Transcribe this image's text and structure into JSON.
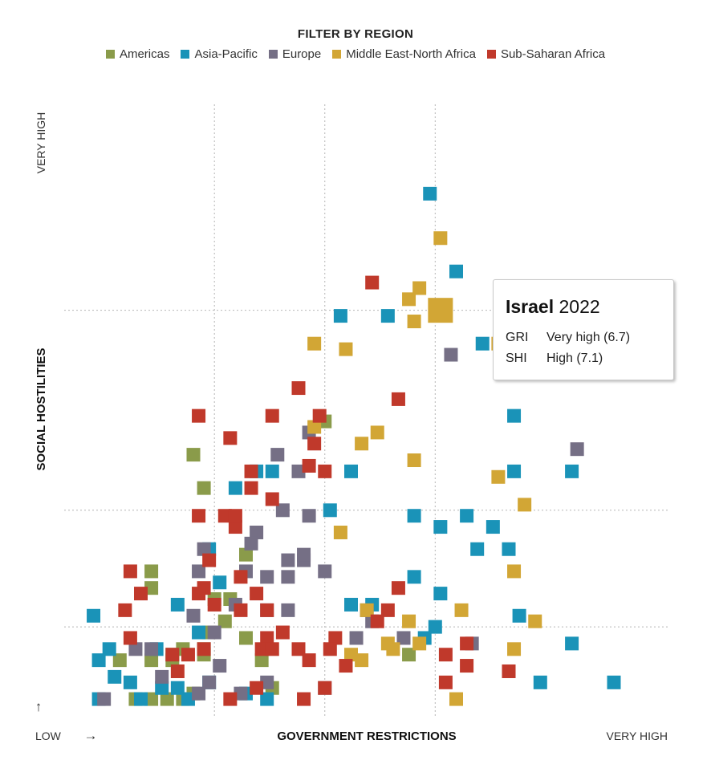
{
  "legend": {
    "title": "FILTER BY REGION",
    "items": [
      {
        "label": "Americas",
        "color": "#8a9b4a"
      },
      {
        "label": "Asia-Pacific",
        "color": "#1a93b8"
      },
      {
        "label": "Europe",
        "color": "#756f85"
      },
      {
        "label": "Middle East-North Africa",
        "color": "#d2a635"
      },
      {
        "label": "Sub-Saharan Africa",
        "color": "#c0392b"
      }
    ]
  },
  "tooltip": {
    "country": "Israel",
    "year": "2022",
    "rows": [
      {
        "key": "GRI",
        "value": "Very high (6.7)"
      },
      {
        "key": "SHI",
        "value": "High (7.1)"
      }
    ]
  },
  "chart_data": {
    "type": "scatter",
    "title": "",
    "xlabel": "GOVERNMENT RESTRICTIONS",
    "ylabel": "SOCIAL HOSTILITIES",
    "x_low_label": "LOW",
    "x_high_label": "VERY HIGH",
    "y_high_label": "VERY HIGH",
    "x_arrow": "→",
    "y_arrow": "↑",
    "xlim": [
      0,
      10
    ],
    "ylim": [
      0,
      10
    ],
    "x_thresholds": [
      2.4,
      4.5,
      6.6
    ],
    "y_thresholds": [
      1.4,
      3.5,
      7.1
    ],
    "grid": true,
    "legend_position": "top-center",
    "highlight": {
      "x": 6.7,
      "y": 7.1
    },
    "series": [
      {
        "name": "Americas",
        "points": [
          [
            0.9,
            0.1
          ],
          [
            1.2,
            0.1
          ],
          [
            1.5,
            0.1
          ],
          [
            1.8,
            0.1
          ],
          [
            2.0,
            0.2
          ],
          [
            0.6,
            0.8
          ],
          [
            1.2,
            0.8
          ],
          [
            1.6,
            0.8
          ],
          [
            1.8,
            1.0
          ],
          [
            2.2,
            1.0
          ],
          [
            2.3,
            1.3
          ],
          [
            2.6,
            1.5
          ],
          [
            3.0,
            1.2
          ],
          [
            3.3,
            0.8
          ],
          [
            3.5,
            0.3
          ],
          [
            1.2,
            2.1
          ],
          [
            1.2,
            2.4
          ],
          [
            2.4,
            1.9
          ],
          [
            2.7,
            1.9
          ],
          [
            2.0,
            4.5
          ],
          [
            2.2,
            3.9
          ],
          [
            3.0,
            2.7
          ],
          [
            4.5,
            5.1
          ],
          [
            1.6,
            0.9
          ],
          [
            6.1,
            0.9
          ],
          [
            2.2,
            0.9
          ]
        ]
      },
      {
        "name": "Asia-Pacific",
        "points": [
          [
            0.1,
            1.6
          ],
          [
            0.2,
            0.8
          ],
          [
            0.4,
            1.0
          ],
          [
            0.2,
            0.1
          ],
          [
            0.5,
            0.5
          ],
          [
            0.8,
            0.4
          ],
          [
            1.0,
            0.1
          ],
          [
            1.4,
            0.3
          ],
          [
            1.7,
            0.3
          ],
          [
            1.3,
            1.0
          ],
          [
            1.7,
            1.8
          ],
          [
            2.1,
            1.3
          ],
          [
            2.5,
            2.2
          ],
          [
            2.3,
            2.8
          ],
          [
            1.9,
            0.1
          ],
          [
            2.3,
            0.4
          ],
          [
            3.2,
            4.2
          ],
          [
            3.5,
            4.2
          ],
          [
            4.6,
            3.5
          ],
          [
            5.0,
            4.2
          ],
          [
            5.0,
            1.8
          ],
          [
            5.4,
            1.8
          ],
          [
            5.7,
            7.0
          ],
          [
            6.2,
            2.3
          ],
          [
            6.2,
            3.4
          ],
          [
            6.4,
            1.2
          ],
          [
            6.6,
            1.4
          ],
          [
            6.7,
            2.0
          ],
          [
            6.7,
            3.2
          ],
          [
            7.2,
            3.4
          ],
          [
            7.4,
            2.8
          ],
          [
            7.7,
            3.2
          ],
          [
            8.0,
            2.8
          ],
          [
            8.1,
            4.2
          ],
          [
            9.2,
            1.1
          ],
          [
            8.6,
            0.4
          ],
          [
            10.0,
            0.4
          ],
          [
            9.2,
            4.2
          ],
          [
            8.2,
            1.6
          ],
          [
            7.0,
            7.8
          ],
          [
            6.5,
            9.2
          ],
          [
            8.1,
            5.2
          ],
          [
            2.8,
            3.9
          ],
          [
            4.8,
            7.0
          ],
          [
            7.5,
            6.5
          ],
          [
            3.0,
            0.2
          ],
          [
            3.4,
            0.1
          ]
        ]
      },
      {
        "name": "Europe",
        "points": [
          [
            0.3,
            0.1
          ],
          [
            0.9,
            1.0
          ],
          [
            1.2,
            1.0
          ],
          [
            1.4,
            0.5
          ],
          [
            2.0,
            1.6
          ],
          [
            2.4,
            1.3
          ],
          [
            2.8,
            1.8
          ],
          [
            2.1,
            2.4
          ],
          [
            2.2,
            2.8
          ],
          [
            3.0,
            2.4
          ],
          [
            3.4,
            1.7
          ],
          [
            3.8,
            1.7
          ],
          [
            3.8,
            2.3
          ],
          [
            4.1,
            2.6
          ],
          [
            3.4,
            2.3
          ],
          [
            3.8,
            2.6
          ],
          [
            4.1,
            2.7
          ],
          [
            4.2,
            3.4
          ],
          [
            4.2,
            4.9
          ],
          [
            4.0,
            4.2
          ],
          [
            3.6,
            4.5
          ],
          [
            3.2,
            3.1
          ],
          [
            3.7,
            3.5
          ],
          [
            4.5,
            2.4
          ],
          [
            5.3,
            1.7
          ],
          [
            5.4,
            1.5
          ],
          [
            7.3,
            1.1
          ],
          [
            5.1,
            1.2
          ],
          [
            6.9,
            6.3
          ],
          [
            9.3,
            4.6
          ],
          [
            6.0,
            1.2
          ],
          [
            3.4,
            0.4
          ],
          [
            4.5,
            0.3
          ],
          [
            2.1,
            0.2
          ],
          [
            2.3,
            0.4
          ],
          [
            2.9,
            0.2
          ],
          [
            3.1,
            2.9
          ],
          [
            2.5,
            0.7
          ]
        ]
      },
      {
        "name": "Middle East-North Africa",
        "points": [
          [
            4.3,
            5.0
          ],
          [
            4.3,
            6.5
          ],
          [
            4.9,
            6.4
          ],
          [
            5.5,
            4.9
          ],
          [
            6.1,
            7.3
          ],
          [
            6.2,
            4.4
          ],
          [
            7.8,
            6.5
          ],
          [
            7.8,
            4.1
          ],
          [
            8.5,
            1.5
          ],
          [
            8.1,
            2.4
          ],
          [
            8.1,
            1.0
          ],
          [
            7.1,
            1.7
          ],
          [
            6.1,
            1.5
          ],
          [
            6.3,
            1.1
          ],
          [
            5.2,
            0.8
          ],
          [
            5.3,
            1.7
          ],
          [
            5.8,
            1.0
          ],
          [
            5.2,
            4.7
          ],
          [
            6.3,
            7.5
          ],
          [
            6.7,
            8.4
          ],
          [
            8.3,
            3.6
          ],
          [
            4.8,
            3.1
          ],
          [
            5.0,
            0.9
          ],
          [
            7.0,
            0.1
          ],
          [
            5.7,
            1.1
          ],
          [
            6.2,
            6.9
          ]
        ]
      },
      {
        "name": "Sub-Saharan Africa",
        "points": [
          [
            0.7,
            1.7
          ],
          [
            0.8,
            1.2
          ],
          [
            1.0,
            2.0
          ],
          [
            0.8,
            2.4
          ],
          [
            2.1,
            3.4
          ],
          [
            2.6,
            3.4
          ],
          [
            2.8,
            3.2
          ],
          [
            2.3,
            2.6
          ],
          [
            2.9,
            2.3
          ],
          [
            3.2,
            2.0
          ],
          [
            3.4,
            1.7
          ],
          [
            3.7,
            1.3
          ],
          [
            2.2,
            2.1
          ],
          [
            2.9,
            1.7
          ],
          [
            3.4,
            1.2
          ],
          [
            3.3,
            1.0
          ],
          [
            3.5,
            1.0
          ],
          [
            4.0,
            1.0
          ],
          [
            4.7,
            1.2
          ],
          [
            4.2,
            0.8
          ],
          [
            4.6,
            1.0
          ],
          [
            4.5,
            0.3
          ],
          [
            4.9,
            0.7
          ],
          [
            2.2,
            1.0
          ],
          [
            1.6,
            0.9
          ],
          [
            1.9,
            0.9
          ],
          [
            1.7,
            0.6
          ],
          [
            2.1,
            2.0
          ],
          [
            2.7,
            0.1
          ],
          [
            3.2,
            0.3
          ],
          [
            4.1,
            0.1
          ],
          [
            5.4,
            7.6
          ],
          [
            5.9,
            5.5
          ],
          [
            5.9,
            2.1
          ],
          [
            2.8,
            3.4
          ],
          [
            3.1,
            3.9
          ],
          [
            3.5,
            3.7
          ],
          [
            4.2,
            4.3
          ],
          [
            3.1,
            4.2
          ],
          [
            3.5,
            5.2
          ],
          [
            4.3,
            4.7
          ],
          [
            4.5,
            4.2
          ],
          [
            6.8,
            0.9
          ],
          [
            7.2,
            0.7
          ],
          [
            8.0,
            0.6
          ],
          [
            2.1,
            5.2
          ],
          [
            2.7,
            4.8
          ],
          [
            4.0,
            5.7
          ],
          [
            4.4,
            5.2
          ],
          [
            6.8,
            0.4
          ],
          [
            7.2,
            1.1
          ],
          [
            2.4,
            1.8
          ],
          [
            5.5,
            1.5
          ],
          [
            5.7,
            1.7
          ]
        ]
      }
    ]
  }
}
